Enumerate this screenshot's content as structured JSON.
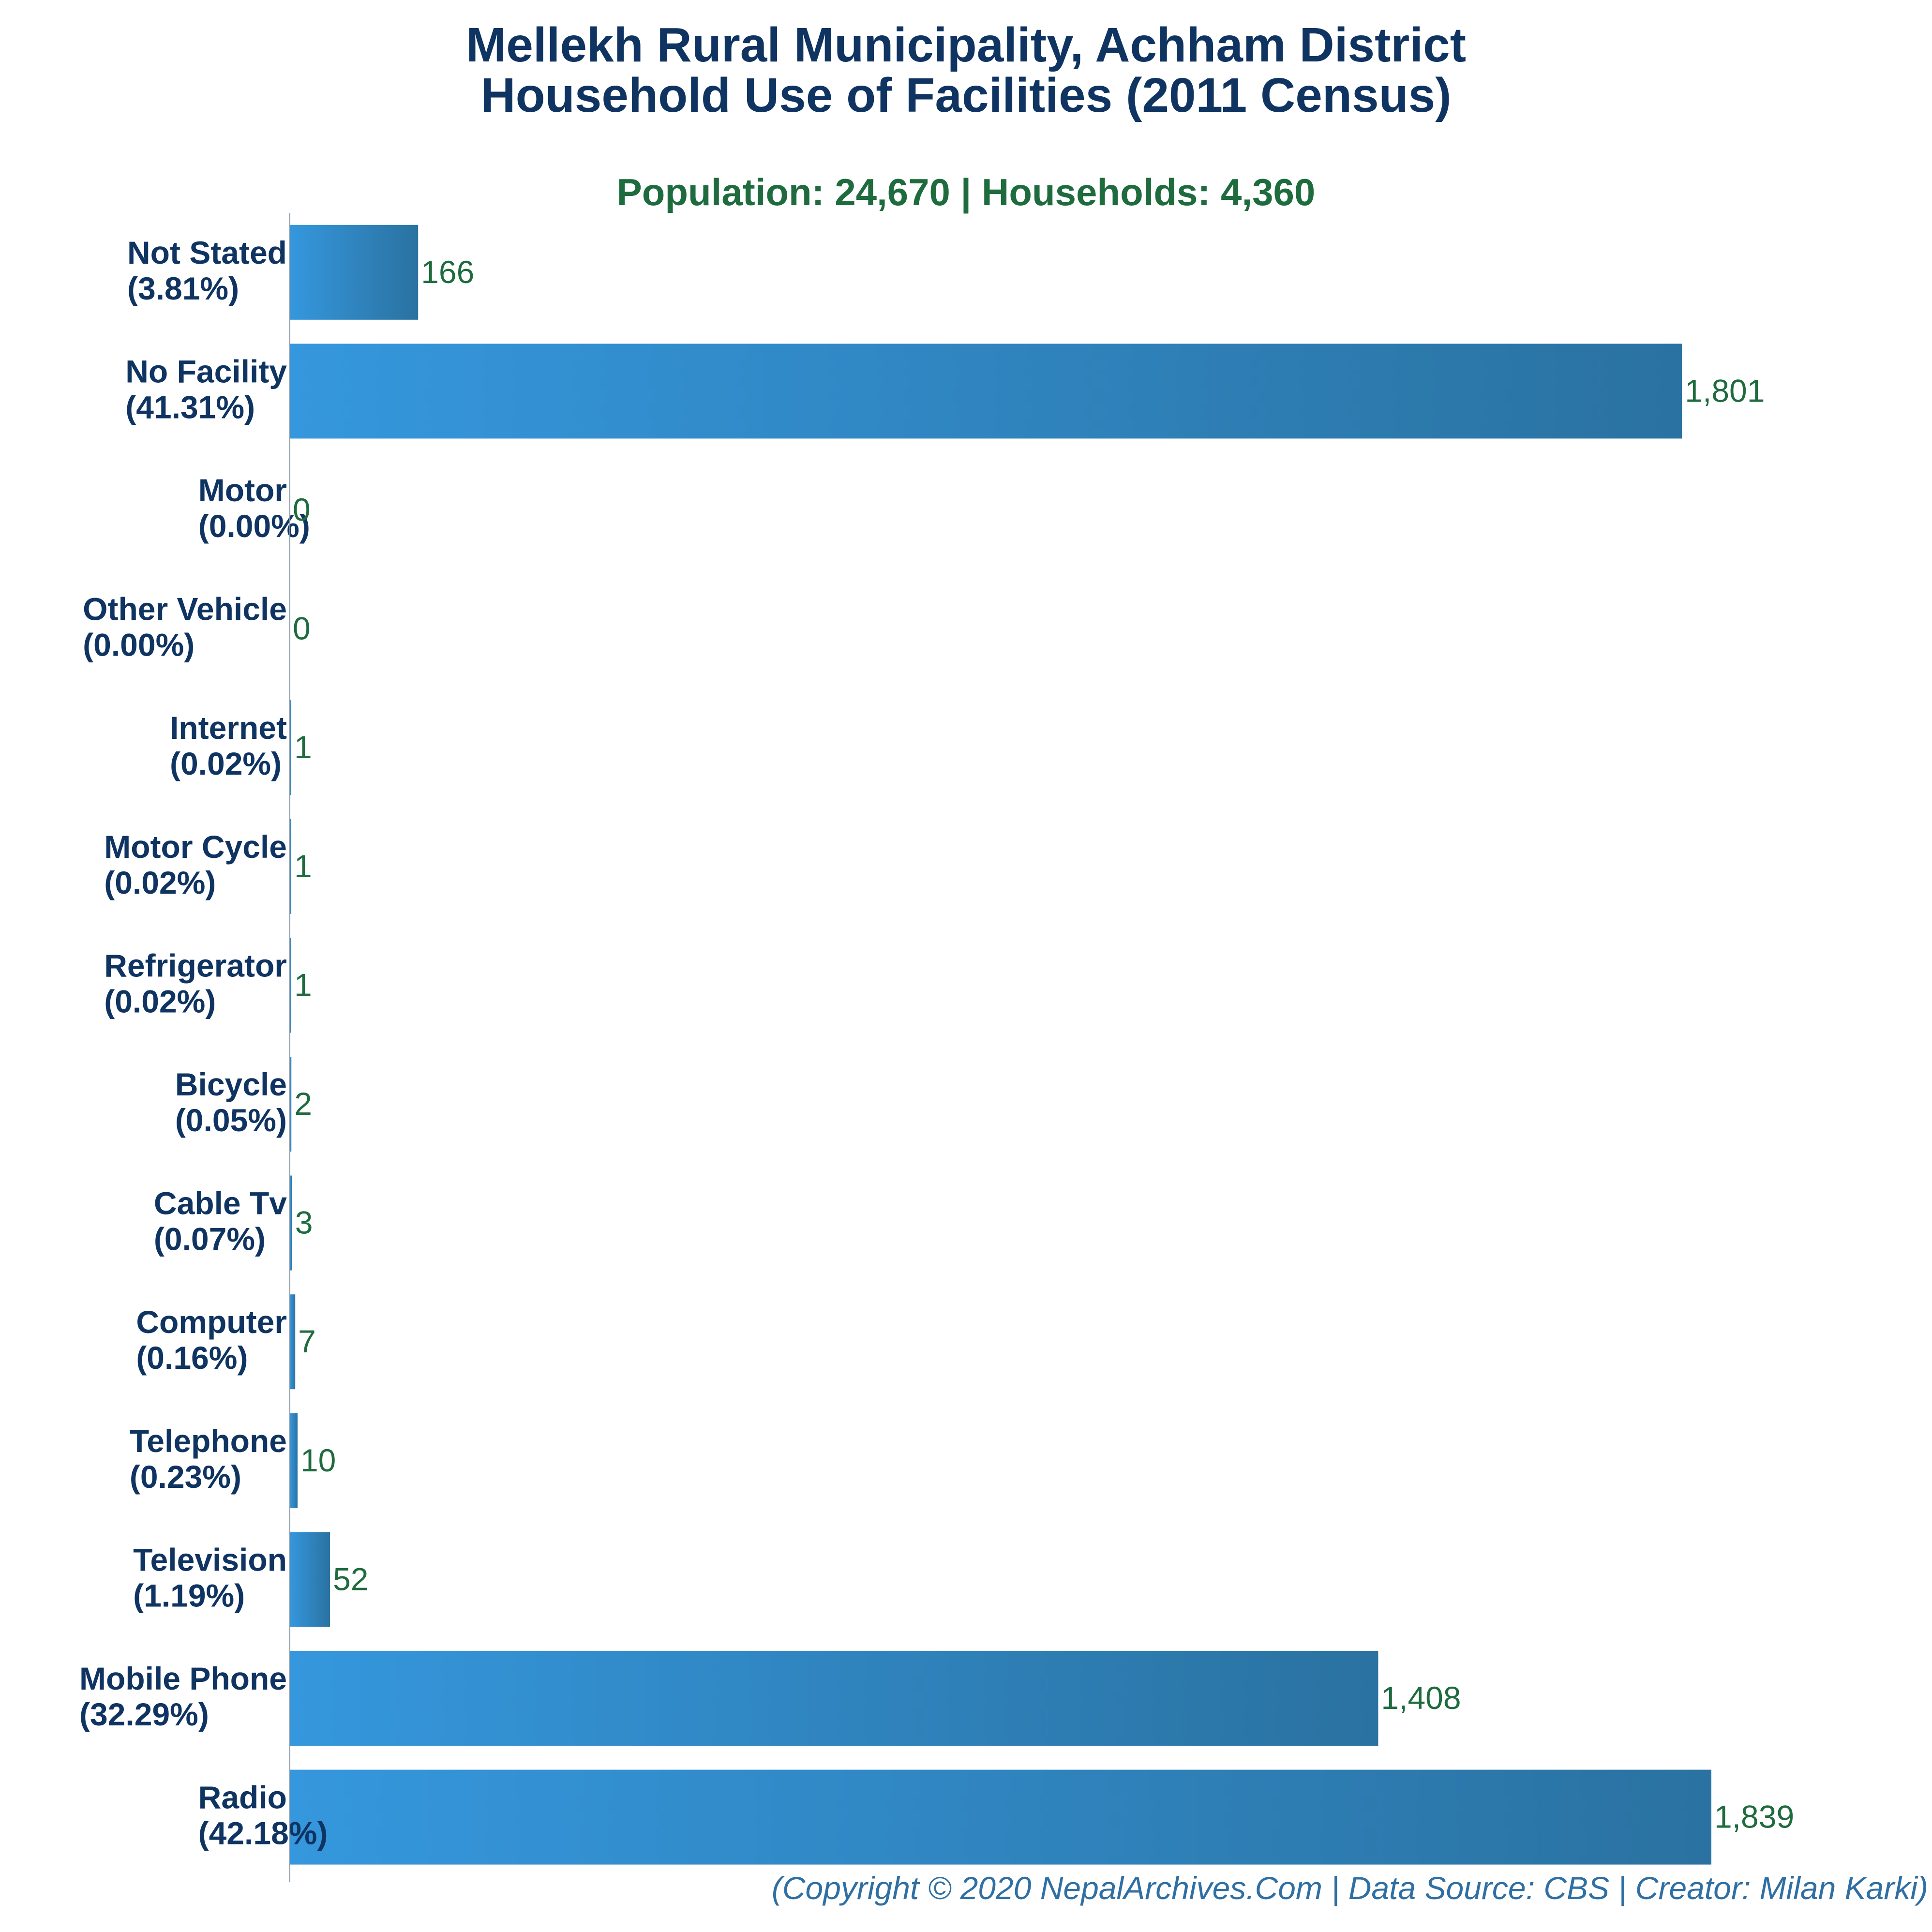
{
  "header": {
    "title_line1": "Mellekh Rural Municipality, Achham District",
    "title_line2": "Household Use of Facilities (2011 Census)",
    "subtitle": "Population: 24,670 | Households: 4,360"
  },
  "footer": {
    "credit": "(Copyright © 2020 NepalArchives.Com | Data Source: CBS | Creator: Milan Karki)"
  },
  "colors": {
    "bar_light": "#3597dd",
    "bar_dark": "#2a72a1",
    "title": "#0f3462",
    "subtitle": "#1e6b3e",
    "value_label": "#1e6b3e",
    "footer": "#2f6fa3",
    "axis": "#8a9aa8"
  },
  "chart_data": {
    "type": "bar",
    "orientation": "horizontal",
    "categories": [
      "Not Stated",
      "No Facility",
      "Motor",
      "Other Vehicle",
      "Internet",
      "Motor Cycle",
      "Refrigerator",
      "Bicycle",
      "Cable Tv",
      "Computer",
      "Telephone",
      "Television",
      "Mobile Phone",
      "Radio"
    ],
    "percent_labels": [
      "(3.81%)",
      "(41.31%)",
      "(0.00%)",
      "(0.00%)",
      "(0.02%)",
      "(0.02%)",
      "(0.02%)",
      "(0.05%)",
      "(0.07%)",
      "(0.16%)",
      "(0.23%)",
      "(1.19%)",
      "(32.29%)",
      "(42.18%)"
    ],
    "values": [
      166,
      1801,
      0,
      0,
      1,
      1,
      1,
      2,
      3,
      7,
      10,
      52,
      1408,
      1839
    ],
    "value_labels": [
      "166",
      "1,801",
      "0",
      "0",
      "1",
      "1",
      "1",
      "2",
      "3",
      "7",
      "10",
      "52",
      "1,408",
      "1,839"
    ],
    "xlim": [
      0,
      1839
    ],
    "grid": false,
    "legend": "none"
  }
}
